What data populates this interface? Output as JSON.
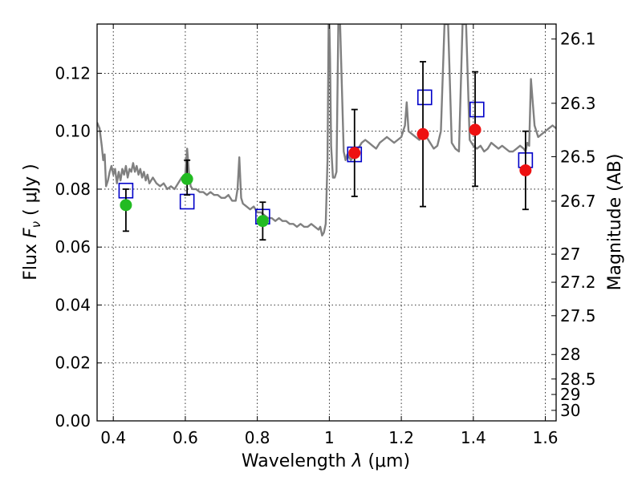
{
  "chart_data": {
    "type": "scatter",
    "xlabel": "Wavelength",
    "xlabel_symbol": "λ",
    "xlabel_unit": "(μm)",
    "ylabel": "Flux",
    "ylabel_symbol": "F",
    "ylabel_symbol_sub": "ν",
    "ylabel_unit": "( μJy )",
    "y2label": "Magnitude (AB)",
    "xlim": [
      0.355,
      1.63
    ],
    "ylim": [
      0.0,
      0.137
    ],
    "grid": true,
    "x_ticks": [
      {
        "v": 0.4,
        "label": "0.4"
      },
      {
        "v": 0.6,
        "label": "0.6"
      },
      {
        "v": 0.8,
        "label": "0.8"
      },
      {
        "v": 1.0,
        "label": "1"
      },
      {
        "v": 1.2,
        "label": "1.2"
      },
      {
        "v": 1.4,
        "label": "1.4"
      },
      {
        "v": 1.6,
        "label": "1.6"
      }
    ],
    "y_ticks": [
      {
        "v": 0.0,
        "label": "0.00"
      },
      {
        "v": 0.02,
        "label": "0.02"
      },
      {
        "v": 0.04,
        "label": "0.04"
      },
      {
        "v": 0.06,
        "label": "0.06"
      },
      {
        "v": 0.08,
        "label": "0.08"
      },
      {
        "v": 0.1,
        "label": "0.10"
      },
      {
        "v": 0.12,
        "label": "0.12"
      }
    ],
    "mag_ticks": [
      {
        "mag": 26.1,
        "label": "26.1"
      },
      {
        "mag": 26.3,
        "label": "26.3"
      },
      {
        "mag": 26.5,
        "label": "26.5"
      },
      {
        "mag": 26.7,
        "label": "26.7"
      },
      {
        "mag": 27.0,
        "label": "27"
      },
      {
        "mag": 27.2,
        "label": "27.2"
      },
      {
        "mag": 27.5,
        "label": "27.5"
      },
      {
        "mag": 28.0,
        "label": "28"
      },
      {
        "mag": 28.5,
        "label": "28.5"
      },
      {
        "mag": 29.0,
        "label": "29"
      },
      {
        "mag": 30.0,
        "label": "30"
      }
    ],
    "colors": {
      "spectrum": "#808080",
      "model": "#0000c8",
      "green": "#22bb22",
      "red": "#ee1111",
      "errorbar": "#000000"
    },
    "series": [
      {
        "kind": "spectrum",
        "x": [
          0.355,
          0.362,
          0.368,
          0.372,
          0.376,
          0.38,
          0.385,
          0.39,
          0.395,
          0.4,
          0.405,
          0.41,
          0.415,
          0.42,
          0.425,
          0.43,
          0.435,
          0.44,
          0.445,
          0.45,
          0.455,
          0.46,
          0.465,
          0.47,
          0.475,
          0.48,
          0.485,
          0.49,
          0.495,
          0.5,
          0.51,
          0.52,
          0.53,
          0.54,
          0.55,
          0.56,
          0.57,
          0.58,
          0.59,
          0.6,
          0.605,
          0.61,
          0.615,
          0.62,
          0.63,
          0.64,
          0.65,
          0.66,
          0.67,
          0.68,
          0.69,
          0.7,
          0.71,
          0.72,
          0.73,
          0.74,
          0.745,
          0.75,
          0.755,
          0.76,
          0.77,
          0.78,
          0.79,
          0.8,
          0.81,
          0.82,
          0.83,
          0.84,
          0.85,
          0.86,
          0.87,
          0.88,
          0.89,
          0.9,
          0.91,
          0.92,
          0.93,
          0.94,
          0.95,
          0.96,
          0.97,
          0.975,
          0.98,
          0.985,
          0.99,
          0.995,
          0.998,
          1.0,
          1.002,
          1.005,
          1.01,
          1.015,
          1.02,
          1.025,
          1.03,
          1.04,
          1.045,
          1.05,
          1.055,
          1.06,
          1.07,
          1.08,
          1.09,
          1.1,
          1.11,
          1.12,
          1.13,
          1.14,
          1.15,
          1.16,
          1.17,
          1.18,
          1.19,
          1.2,
          1.21,
          1.215,
          1.22,
          1.23,
          1.24,
          1.25,
          1.26,
          1.27,
          1.28,
          1.29,
          1.3,
          1.31,
          1.32,
          1.33,
          1.34,
          1.35,
          1.36,
          1.37,
          1.38,
          1.39,
          1.4,
          1.41,
          1.42,
          1.43,
          1.44,
          1.45,
          1.46,
          1.47,
          1.48,
          1.49,
          1.5,
          1.51,
          1.52,
          1.53,
          1.54,
          1.545,
          1.55,
          1.555,
          1.56,
          1.57,
          1.58,
          1.59,
          1.6,
          1.61,
          1.62,
          1.63
        ],
        "y": [
          0.103,
          0.101,
          0.095,
          0.09,
          0.092,
          0.081,
          0.083,
          0.086,
          0.088,
          0.085,
          0.087,
          0.082,
          0.086,
          0.083,
          0.087,
          0.085,
          0.088,
          0.084,
          0.087,
          0.086,
          0.089,
          0.086,
          0.088,
          0.085,
          0.087,
          0.084,
          0.086,
          0.083,
          0.085,
          0.082,
          0.084,
          0.082,
          0.081,
          0.082,
          0.08,
          0.081,
          0.08,
          0.082,
          0.084,
          0.085,
          0.094,
          0.086,
          0.081,
          0.08,
          0.08,
          0.079,
          0.079,
          0.078,
          0.079,
          0.078,
          0.078,
          0.077,
          0.077,
          0.078,
          0.076,
          0.076,
          0.08,
          0.091,
          0.077,
          0.075,
          0.074,
          0.073,
          0.074,
          0.072,
          0.072,
          0.071,
          0.07,
          0.07,
          0.069,
          0.07,
          0.069,
          0.069,
          0.068,
          0.068,
          0.067,
          0.068,
          0.067,
          0.067,
          0.068,
          0.067,
          0.066,
          0.067,
          0.064,
          0.065,
          0.068,
          0.09,
          0.137,
          0.137,
          0.125,
          0.095,
          0.084,
          0.084,
          0.086,
          0.137,
          0.137,
          0.093,
          0.09,
          0.092,
          0.091,
          0.09,
          0.092,
          0.094,
          0.096,
          0.097,
          0.096,
          0.095,
          0.094,
          0.096,
          0.097,
          0.098,
          0.097,
          0.096,
          0.097,
          0.098,
          0.102,
          0.11,
          0.1,
          0.099,
          0.098,
          0.097,
          0.099,
          0.098,
          0.096,
          0.094,
          0.095,
          0.1,
          0.137,
          0.137,
          0.096,
          0.094,
          0.093,
          0.137,
          0.137,
          0.097,
          0.095,
          0.094,
          0.095,
          0.093,
          0.094,
          0.096,
          0.095,
          0.094,
          0.095,
          0.094,
          0.093,
          0.093,
          0.094,
          0.095,
          0.094,
          0.093,
          0.096,
          0.095,
          0.118,
          0.102,
          0.098,
          0.099,
          0.1,
          0.101,
          0.102,
          0.101
        ]
      },
      {
        "kind": "model",
        "name": "",
        "points": [
          [
            0.435,
            0.0795
          ],
          [
            0.605,
            0.0757
          ],
          [
            0.815,
            0.0705
          ],
          [
            1.07,
            0.092
          ],
          [
            1.265,
            0.1117
          ],
          [
            1.41,
            0.1075
          ],
          [
            1.545,
            0.09
          ]
        ]
      },
      {
        "kind": "obs",
        "color_key": "green",
        "points": [
          {
            "x": 0.435,
            "y": 0.0745,
            "lo": 0.0655,
            "hi": 0.08
          },
          {
            "x": 0.605,
            "y": 0.0835,
            "lo": 0.078,
            "hi": 0.09
          },
          {
            "x": 0.815,
            "y": 0.069,
            "lo": 0.0625,
            "hi": 0.0755
          }
        ]
      },
      {
        "kind": "obs",
        "color_key": "red",
        "points": [
          {
            "x": 1.07,
            "y": 0.0925,
            "lo": 0.0775,
            "hi": 0.1075
          },
          {
            "x": 1.26,
            "y": 0.099,
            "lo": 0.074,
            "hi": 0.124
          },
          {
            "x": 1.405,
            "y": 0.1005,
            "lo": 0.081,
            "hi": 0.1205
          },
          {
            "x": 1.545,
            "y": 0.0865,
            "lo": 0.073,
            "hi": 0.1
          }
        ]
      }
    ]
  }
}
